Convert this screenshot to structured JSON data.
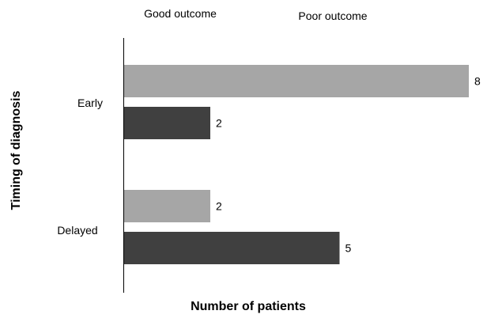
{
  "chart_data": {
    "type": "bar",
    "orientation": "horizontal",
    "title": "",
    "xlabel": "Number of patients",
    "ylabel": "Timing of diagnosis",
    "categories": [
      "Early",
      "Delayed"
    ],
    "series": [
      {
        "name": "Good outcome",
        "values": [
          8,
          2
        ],
        "color": "#a6a6a6"
      },
      {
        "name": "Poor outcome",
        "values": [
          2,
          5
        ],
        "color": "#404040"
      }
    ],
    "xlim": [
      0,
      8
    ],
    "grid": false,
    "legend_position": "top",
    "data_labels": true
  }
}
